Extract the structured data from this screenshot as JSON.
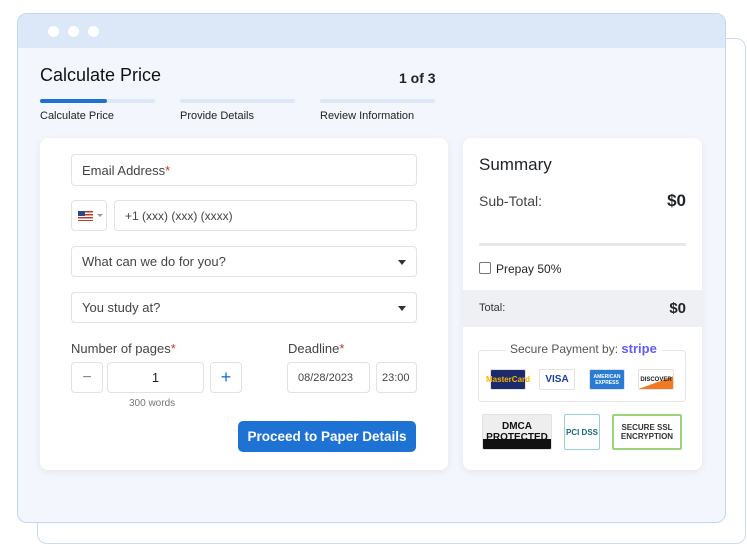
{
  "header": {
    "title": "Calculate Price",
    "step_counter": "1 of 3",
    "progress_fraction": 0.6
  },
  "steps": [
    {
      "label": "Calculate Price"
    },
    {
      "label": "Provide Details"
    },
    {
      "label": "Review Information"
    }
  ],
  "form": {
    "email_placeholder": "Email Address",
    "required_mark": "*",
    "phone_placeholder": "+1 (xxx) (xxx) (xxxx)",
    "country_flag": "us-flag-icon",
    "service_select": "What can we do for you?",
    "study_select": "You study at?",
    "pages_label": "Number of pages",
    "pages_value": "1",
    "pages_minus": "−",
    "pages_plus": "+",
    "words_hint": "300 words",
    "deadline_label": "Deadline",
    "deadline_date": "08/28/2023",
    "deadline_time": "23:00",
    "submit_label": "Proceed to Paper Details"
  },
  "summary": {
    "title": "Summary",
    "subtotal_label": "Sub-Total:",
    "subtotal_value": "$0",
    "prepay_label": "Prepay 50%",
    "prepay_checked": false,
    "total_label": "Total:",
    "total_value": "$0",
    "secure_payment_label": "Secure Payment by:",
    "stripe_logo": "stripe",
    "cards": [
      "MasterCard",
      "VISA",
      "AMERICAN EXPRESS",
      "DISCOVER"
    ],
    "badges": [
      "DMCA PROTECTED",
      "PCI DSS",
      "SECURE SSL ENCRYPTION"
    ]
  },
  "colors": {
    "accent": "#1d72d4",
    "stripe": "#635bff"
  }
}
